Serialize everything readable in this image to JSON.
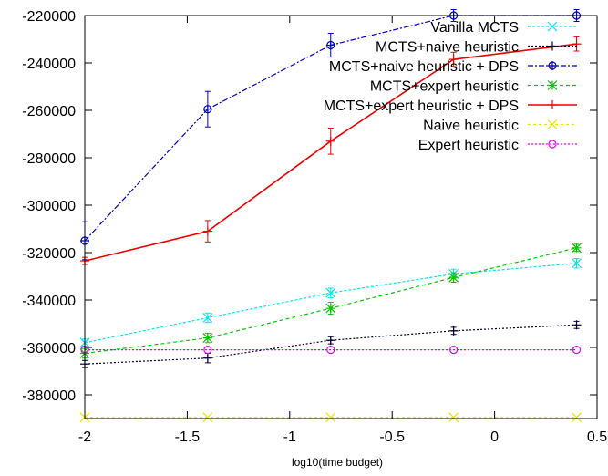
{
  "chart_data": {
    "type": "line",
    "title": "",
    "xlabel": "log10(time budget)",
    "ylabel": "",
    "xlim": [
      -2,
      0.5
    ],
    "ylim": [
      -390000,
      -220000
    ],
    "xticks": [
      -2,
      -1.5,
      -1,
      -0.5,
      0,
      0.5
    ],
    "yticks": [
      -220000,
      -240000,
      -260000,
      -280000,
      -300000,
      -320000,
      -340000,
      -360000,
      -380000
    ],
    "xtick_labels": [
      "-2",
      "-1.5",
      "-1",
      "-0.5",
      "0",
      "0.5"
    ],
    "ytick_labels": [
      "-220000",
      "-240000",
      "-260000",
      "-280000",
      "-300000",
      "-320000",
      "-340000",
      "-360000",
      "-380000"
    ],
    "grid": false,
    "legend_position": "top-right",
    "x": [
      -2,
      -1.4,
      -0.8,
      -0.2,
      0.4
    ],
    "series": [
      {
        "name": "Vanilla MCTS",
        "color": "#00e5ee",
        "marker": "x",
        "dash": "3,2",
        "values": [
          -358000,
          -347500,
          -337000,
          -329000,
          -324500
        ],
        "errors": [
          1500,
          2000,
          2000,
          2000,
          2000
        ]
      },
      {
        "name": "MCTS+naive heuristic",
        "color": "#000033",
        "marker": "plus",
        "dash": "2,2",
        "values": [
          -367000,
          -364500,
          -357000,
          -353000,
          -350500
        ],
        "errors": [
          1500,
          2000,
          1500,
          1500,
          1500
        ]
      },
      {
        "name": "MCTS+naive heuristic + DPS",
        "color": "#0000c8",
        "marker": "circle-plus",
        "dash": "6,2,2,2",
        "values": [
          -315000,
          -259500,
          -232500,
          -220000,
          -220000
        ],
        "errors": [
          8000,
          7500,
          5000,
          2500,
          2500
        ]
      },
      {
        "name": "MCTS+expert heuristic",
        "color": "#00c800",
        "marker": "star",
        "dash": "4,3",
        "values": [
          -362500,
          -356000,
          -343500,
          -330500,
          -318000
        ],
        "errors": [
          2000,
          2000,
          2500,
          2000,
          1500
        ]
      },
      {
        "name": "MCTS+expert heuristic + DPS",
        "color": "#ee0000",
        "marker": "plus",
        "dash": "",
        "values": [
          -323500,
          -311000,
          -273000,
          -238500,
          -232000
        ],
        "errors": [
          1500,
          4500,
          5500,
          3000,
          3000
        ]
      },
      {
        "name": "Naive heuristic",
        "color": "#e5e500",
        "marker": "x",
        "dash": "3,3",
        "values": [
          -389500,
          -389500,
          -389500,
          -389500,
          -389500
        ],
        "errors": [
          0,
          0,
          0,
          0,
          0
        ]
      },
      {
        "name": "Expert heuristic",
        "color": "#ee00ee",
        "marker": "circle",
        "dash": "2,2",
        "values": [
          -361000,
          -361000,
          -361000,
          -361000,
          -361000
        ],
        "errors": [
          0,
          0,
          0,
          0,
          0
        ]
      }
    ]
  }
}
